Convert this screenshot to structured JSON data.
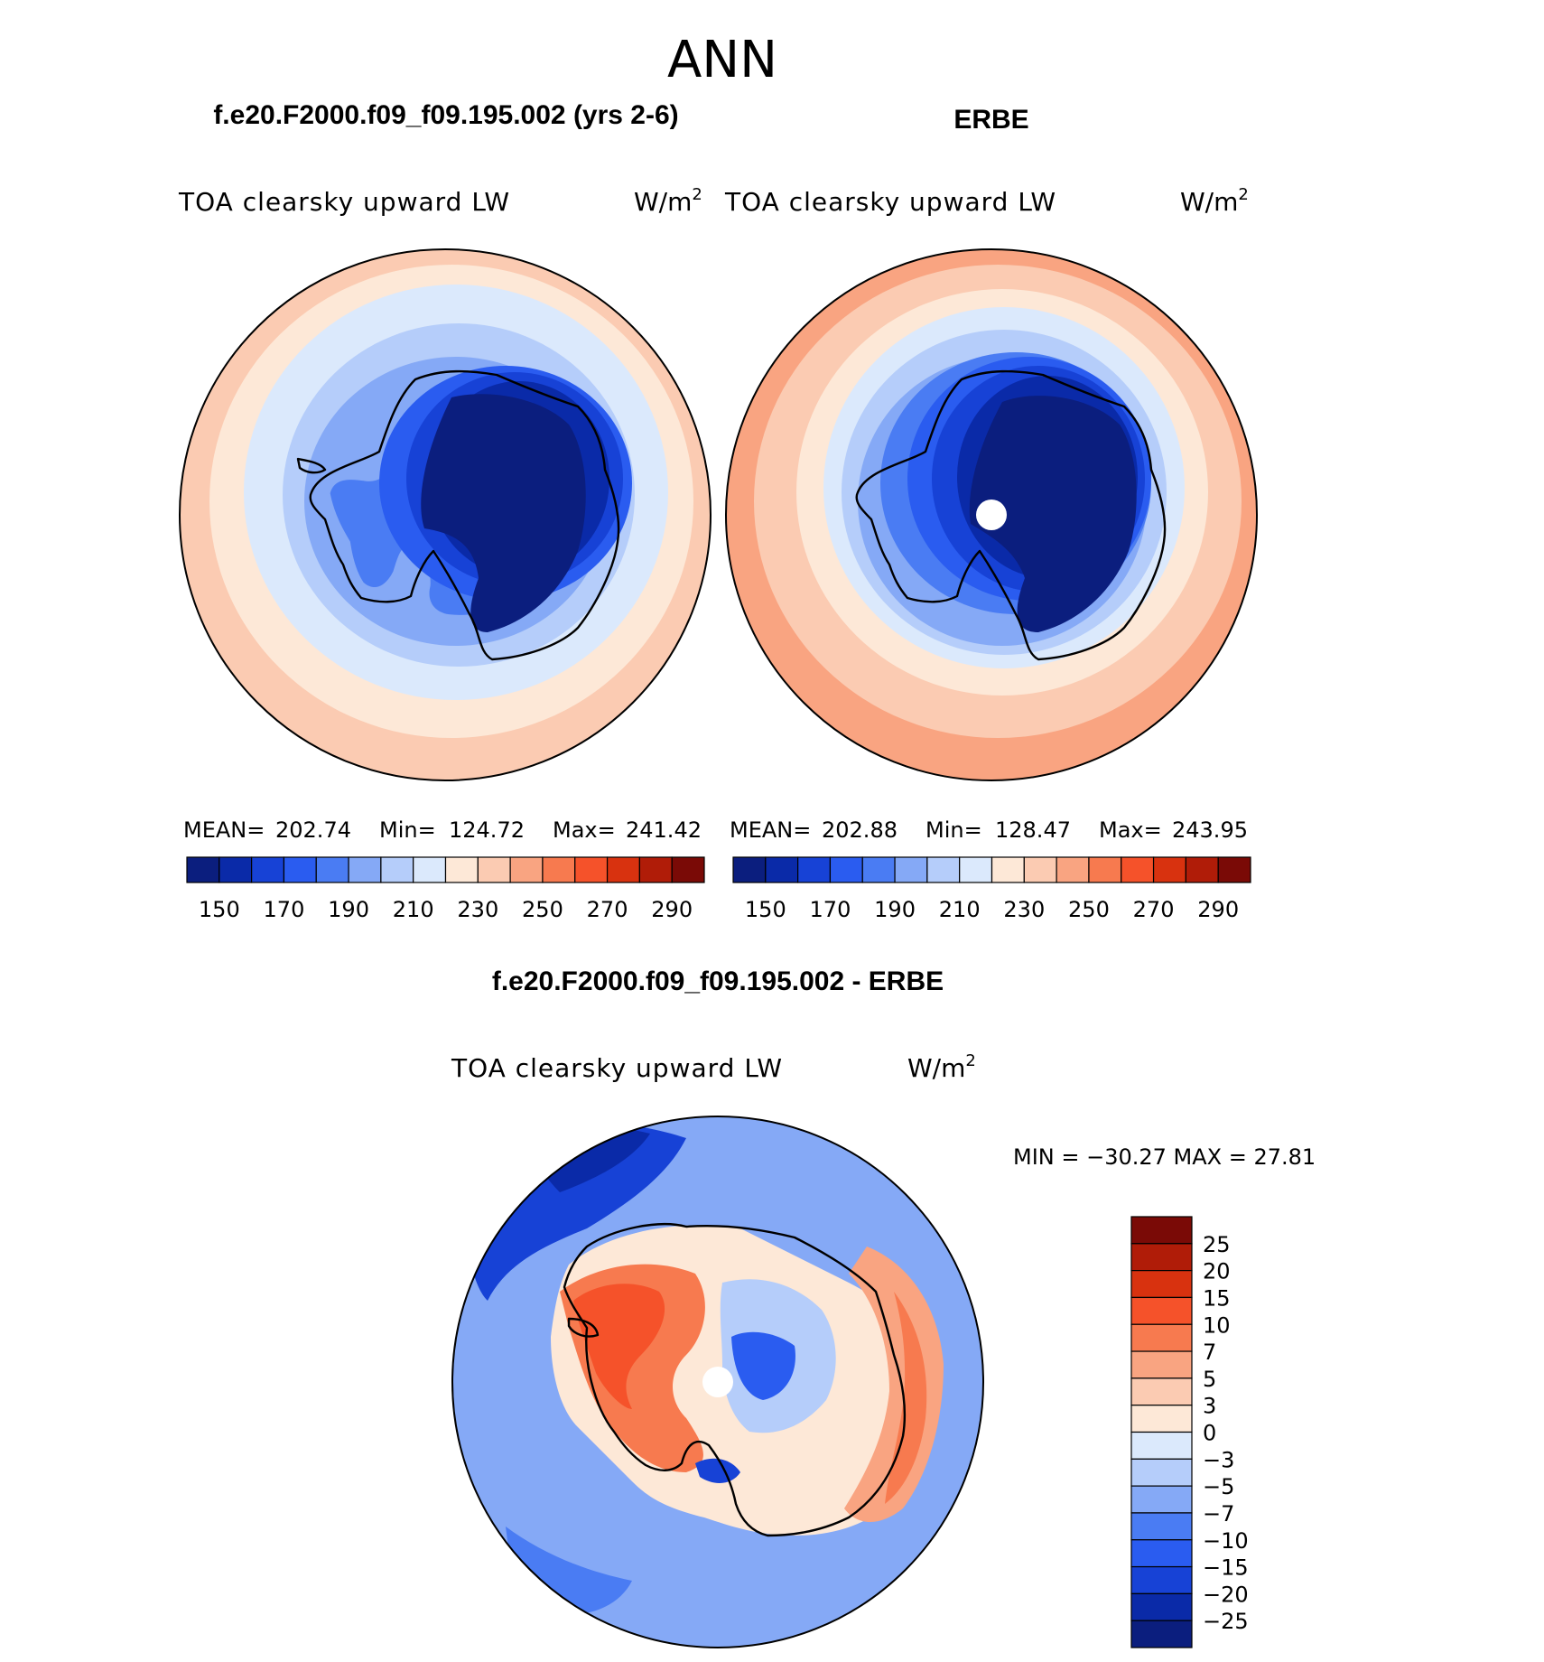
{
  "page_title": "ANN",
  "palette_abs": [
    "#0b1e7e",
    "#0a2aa8",
    "#1742d6",
    "#2a5cf0",
    "#4a7cf3",
    "#85a9f6",
    "#b5cdfa",
    "#dbe9fc",
    "#fde8d7",
    "#fbcbb2",
    "#f9a481",
    "#f77a4f",
    "#f5522a",
    "#d8320f",
    "#b01c08",
    "#7a0a06"
  ],
  "palette_diff": [
    "#7a0a06",
    "#b01c08",
    "#d8320f",
    "#f5522a",
    "#f77a4f",
    "#f9a481",
    "#fbcbb2",
    "#fde8d7",
    "#dbe9fc",
    "#b5cdfa",
    "#85a9f6",
    "#4a7cf3",
    "#2a5cf0",
    "#1742d6",
    "#0a2aa8",
    "#0b1e7e"
  ],
  "panels": [
    {
      "case_title": "f.e20.F2000.f09_f09.195.002 (yrs 2-6)",
      "field": "TOA clearsky upward LW",
      "units": "W/m",
      "units_sup": "2",
      "stats": {
        "mean_label": "MEAN=",
        "mean": "202.74",
        "min_label": "Min=",
        "min": "124.72",
        "max_label": "Max=",
        "max": "241.42"
      },
      "colorbar_labels": [
        "150",
        "170",
        "190",
        "210",
        "230",
        "250",
        "270",
        "290"
      ]
    },
    {
      "case_title": "ERBE",
      "field": "TOA clearsky upward LW",
      "units": "W/m",
      "units_sup": "2",
      "stats": {
        "mean_label": "MEAN=",
        "mean": "202.88",
        "min_label": "Min=",
        "min": "128.47",
        "max_label": "Max=",
        "max": "243.95"
      },
      "colorbar_labels": [
        "150",
        "170",
        "190",
        "210",
        "230",
        "250",
        "270",
        "290"
      ]
    }
  ],
  "diff_panel": {
    "case_title": "f.e20.F2000.f09_f09.195.002 - ERBE",
    "field": "TOA clearsky upward LW",
    "units": "W/m",
    "units_sup": "2",
    "minmax": "MIN = −30.27 MAX =  27.81",
    "colorbar_labels": [
      "25",
      "20",
      "15",
      "10",
      "7",
      "5",
      "3",
      "0",
      "−3",
      "−5",
      "−7",
      "−10",
      "−15",
      "−20",
      "−25"
    ]
  }
}
